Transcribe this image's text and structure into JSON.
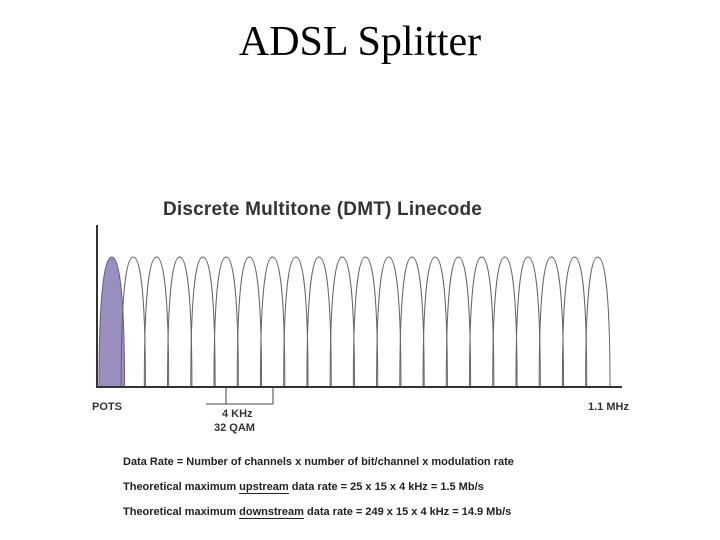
{
  "slide": {
    "title": "ADSL Splitter"
  },
  "figure": {
    "title": "Discrete Multitone (DMT) Linecode",
    "labels": {
      "pots": "POTS",
      "channel_width": "4 KHz",
      "modulation": "32 QAM",
      "max_freq": "1.1 MHz"
    },
    "pots_color": "#9b8fc0",
    "tone_count": 22
  },
  "equations": {
    "data_rate": "Data Rate = Number of channels x number of bit/channel x modulation rate",
    "upstream": {
      "prefix": "Theoretical maximum ",
      "keyword": "upstream",
      "suffix": " data rate = 25 x 15 x 4 kHz = 1.5 Mb/s"
    },
    "downstream": {
      "prefix": "Theoretical maximum ",
      "keyword": "downstream",
      "suffix": " data rate = 249 x 15 x 4 kHz = 14.9 Mb/s"
    }
  }
}
